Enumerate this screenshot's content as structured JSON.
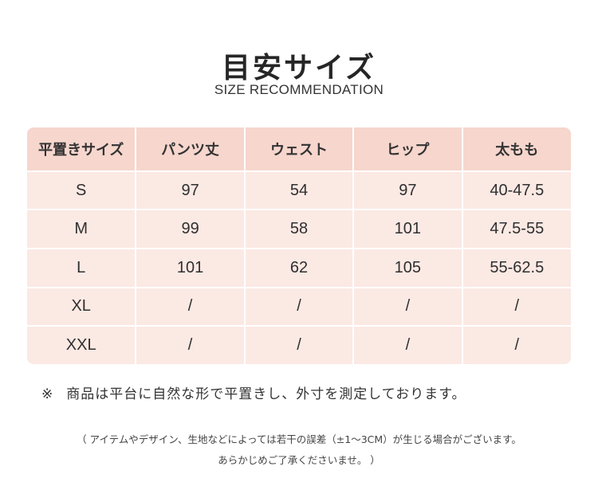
{
  "title": "目安サイズ",
  "subtitle": "SIZE RECOMMENDATION",
  "table": {
    "headers": [
      "平置きサイズ",
      "パンツ丈",
      "ウェスト",
      "ヒップ",
      "太もも"
    ],
    "rows": [
      [
        "S",
        "97",
        "54",
        "97",
        "40-47.5"
      ],
      [
        "M",
        "99",
        "58",
        "101",
        "47.5-55"
      ],
      [
        "L",
        "101",
        "62",
        "105",
        "55-62.5"
      ],
      [
        "XL",
        "/",
        "/",
        "/",
        "/"
      ],
      [
        "XXL",
        "/",
        "/",
        "/",
        "/"
      ]
    ]
  },
  "note": {
    "mark": "※",
    "text": "商品は平台に自然な形で平置きし、外寸を測定しております。"
  },
  "footer": {
    "line1": "（ アイテムやデザイン、生地などによっては若干の誤差（±1～3CM）が生じる場合がございます。",
    "line2": "あらかじめご了承くださいませ。 ）"
  },
  "colors": {
    "header_bg": "#f6d6cd",
    "row_bg": "#fbe9e4"
  }
}
